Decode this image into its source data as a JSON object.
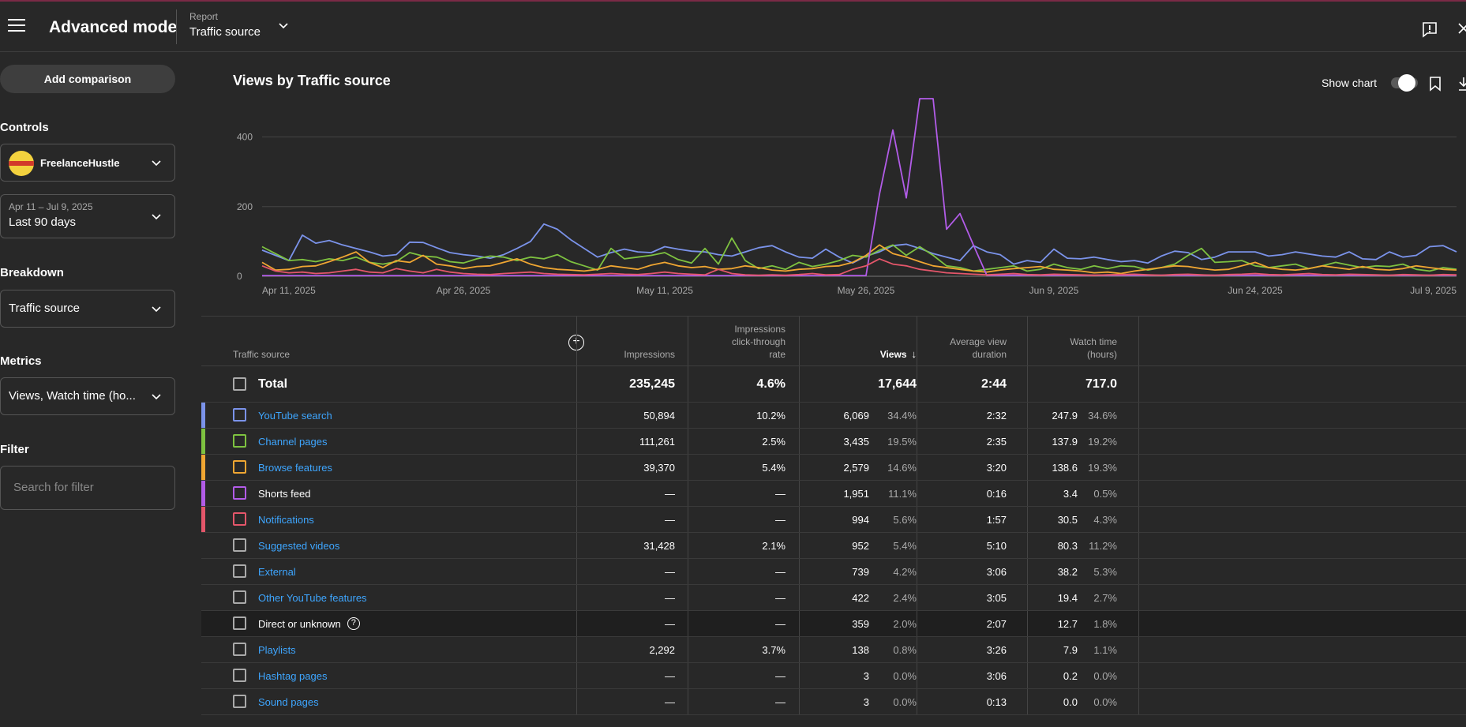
{
  "header": {
    "title": "Advanced mode",
    "report_label": "Report",
    "report_value": "Traffic source"
  },
  "sidebar": {
    "add_comparison": "Add comparison",
    "controls_heading": "Controls",
    "channel": "FreelanceHustle",
    "date_range_sub": "Apr 11 – Jul 9, 2025",
    "date_range": "Last 90 days",
    "breakdown_heading": "Breakdown",
    "breakdown": "Traffic source",
    "metrics_heading": "Metrics",
    "metrics": "Views, Watch time (ho...",
    "filter_heading": "Filter",
    "filter_placeholder": "Search for filter"
  },
  "chart": {
    "title": "Views by Traffic source",
    "show_chart_label": "Show chart",
    "show_chart_on": true
  },
  "chart_data": {
    "type": "line",
    "x": [
      "Apr 11, 2025",
      "Apr 12",
      "Apr 13",
      "Apr 14",
      "Apr 15",
      "Apr 16",
      "Apr 17",
      "Apr 18",
      "Apr 19",
      "Apr 20",
      "Apr 21",
      "Apr 22",
      "Apr 23",
      "Apr 24",
      "Apr 25",
      "Apr 26, 2025",
      "Apr 27",
      "Apr 28",
      "Apr 29",
      "Apr 30",
      "May 1",
      "May 2",
      "May 3",
      "May 4",
      "May 5",
      "May 6",
      "May 7",
      "May 8",
      "May 9",
      "May 10",
      "May 11, 2025",
      "May 12",
      "May 13",
      "May 14",
      "May 15",
      "May 16",
      "May 17",
      "May 18",
      "May 19",
      "May 20",
      "May 21",
      "May 22",
      "May 23",
      "May 24",
      "May 25",
      "May 26, 2025",
      "May 27",
      "May 28",
      "May 29",
      "May 30",
      "May 31",
      "Jun 1",
      "Jun 2",
      "Jun 3",
      "Jun 4",
      "Jun 5",
      "Jun 6",
      "Jun 7",
      "Jun 8",
      "Jun 9, 2025",
      "Jun 10",
      "Jun 11",
      "Jun 12",
      "Jun 13",
      "Jun 14",
      "Jun 15",
      "Jun 16",
      "Jun 17",
      "Jun 18",
      "Jun 19",
      "Jun 20",
      "Jun 21",
      "Jun 22",
      "Jun 23",
      "Jun 24, 2025",
      "Jun 25",
      "Jun 26",
      "Jun 27",
      "Jun 28",
      "Jun 29",
      "Jun 30",
      "Jul 1",
      "Jul 2",
      "Jul 3",
      "Jul 4",
      "Jul 5",
      "Jul 6",
      "Jul 7",
      "Jul 8",
      "Jul 9, 2025"
    ],
    "x_tick_labels": [
      "Apr 11, 2025",
      "Apr 26, 2025",
      "May 11, 2025",
      "May 26, 2025",
      "Jun 9, 2025",
      "Jun 24, 2025",
      "Jul 9, 2025"
    ],
    "x_tick_index": [
      0,
      15,
      30,
      45,
      59,
      74,
      89
    ],
    "y_ticks": [
      0,
      200,
      400
    ],
    "ylim": [
      0,
      510
    ],
    "grid": true,
    "series": [
      {
        "name": "YouTube search",
        "color": "#7b93ea",
        "values": [
          75,
          60,
          45,
          118,
          95,
          103,
          90,
          80,
          70,
          58,
          62,
          98,
          97,
          82,
          68,
          62,
          58,
          52,
          62,
          80,
          100,
          150,
          135,
          105,
          80,
          55,
          68,
          78,
          70,
          68,
          85,
          78,
          72,
          70,
          62,
          58,
          70,
          82,
          88,
          70,
          55,
          52,
          78,
          55,
          38,
          58,
          70,
          88,
          92,
          80,
          65,
          55,
          45,
          88,
          70,
          62,
          35,
          45,
          40,
          78,
          52,
          50,
          55,
          48,
          42,
          45,
          38,
          58,
          72,
          68,
          48,
          55,
          70,
          70,
          70,
          58,
          62,
          70,
          64,
          58,
          55,
          70,
          50,
          48,
          70,
          55,
          60,
          85,
          88,
          70
        ]
      },
      {
        "name": "Channel pages",
        "color": "#7ec240",
        "values": [
          85,
          65,
          45,
          48,
          42,
          50,
          45,
          55,
          40,
          35,
          42,
          68,
          58,
          55,
          42,
          38,
          50,
          58,
          55,
          45,
          55,
          50,
          62,
          42,
          30,
          18,
          80,
          50,
          55,
          60,
          68,
          48,
          38,
          80,
          35,
          110,
          45,
          22,
          30,
          20,
          40,
          28,
          35,
          45,
          60,
          55,
          75,
          90,
          60,
          85,
          60,
          30,
          25,
          15,
          20,
          25,
          30,
          15,
          20,
          35,
          25,
          20,
          30,
          22,
          30,
          28,
          18,
          25,
          35,
          60,
          80,
          40,
          42,
          45,
          30,
          25,
          30,
          35,
          22,
          30,
          40,
          32,
          25,
          30,
          28,
          35,
          20,
          15,
          25,
          20
        ]
      },
      {
        "name": "Browse features",
        "color": "#f0a632",
        "values": [
          40,
          18,
          20,
          28,
          30,
          42,
          55,
          70,
          40,
          25,
          45,
          40,
          60,
          35,
          30,
          22,
          28,
          30,
          40,
          50,
          35,
          25,
          20,
          18,
          15,
          20,
          30,
          25,
          20,
          32,
          40,
          30,
          25,
          28,
          20,
          22,
          30,
          25,
          18,
          15,
          20,
          22,
          28,
          30,
          40,
          60,
          90,
          65,
          55,
          42,
          30,
          25,
          20,
          15,
          12,
          18,
          22,
          25,
          28,
          20,
          18,
          15,
          10,
          12,
          8,
          15,
          20,
          25,
          30,
          28,
          22,
          18,
          20,
          30,
          40,
          25,
          20,
          18,
          22,
          30,
          25,
          20,
          28,
          20,
          18,
          22,
          30,
          25,
          20,
          18
        ]
      },
      {
        "name": "Shorts feed",
        "color": "#b25ce8",
        "values": [
          2,
          2,
          2,
          2,
          2,
          2,
          2,
          2,
          2,
          2,
          2,
          2,
          2,
          2,
          2,
          2,
          2,
          2,
          2,
          2,
          2,
          2,
          2,
          2,
          2,
          2,
          2,
          2,
          2,
          2,
          2,
          2,
          2,
          2,
          2,
          2,
          2,
          2,
          2,
          2,
          2,
          2,
          2,
          2,
          2,
          2,
          235,
          420,
          225,
          510,
          510,
          135,
          180,
          90,
          3,
          3,
          3,
          3,
          3,
          3,
          3,
          3,
          3,
          3,
          3,
          3,
          3,
          3,
          3,
          3,
          3,
          3,
          3,
          3,
          3,
          3,
          3,
          3,
          3,
          3,
          3,
          3,
          3,
          3,
          3,
          3,
          3,
          3,
          3,
          3
        ]
      },
      {
        "name": "Notifications",
        "color": "#e4566a",
        "values": [
          30,
          15,
          10,
          12,
          8,
          10,
          15,
          20,
          12,
          10,
          22,
          15,
          10,
          20,
          12,
          8,
          6,
          5,
          8,
          10,
          12,
          8,
          6,
          5,
          4,
          6,
          8,
          6,
          5,
          8,
          12,
          8,
          6,
          4,
          20,
          8,
          4,
          3,
          4,
          3,
          5,
          8,
          4,
          5,
          20,
          30,
          50,
          35,
          30,
          20,
          15,
          10,
          8,
          6,
          4,
          6,
          8,
          5,
          4,
          6,
          5,
          4,
          3,
          4,
          5,
          6,
          4,
          3,
          5,
          6,
          4,
          3,
          5,
          6,
          8,
          5,
          4,
          6,
          8,
          5,
          4,
          6,
          5,
          4,
          3,
          5,
          4,
          3,
          5,
          4
        ]
      }
    ]
  },
  "table": {
    "headers": {
      "source": "Traffic source",
      "impressions": "Impressions",
      "ctr_1": "Impressions",
      "ctr_2": "click-through",
      "ctr_3": "rate",
      "views": "Views",
      "avd_1": "Average view",
      "avd_2": "duration",
      "wt_1": "Watch time",
      "wt_2": "(hours)"
    },
    "total": {
      "label": "Total",
      "impressions": "235,245",
      "ctr": "4.6%",
      "views": "17,644",
      "avd": "2:44",
      "watch": "717.0"
    },
    "rows": [
      {
        "name": "YouTube search",
        "color": "#7b93ea",
        "impressions": "50,894",
        "ctr": "10.2%",
        "views": "6,069",
        "views_pct": "34.4%",
        "avd": "2:32",
        "watch": "247.9",
        "watch_pct": "34.6%"
      },
      {
        "name": "Channel pages",
        "color": "#7ec240",
        "impressions": "111,261",
        "ctr": "2.5%",
        "views": "3,435",
        "views_pct": "19.5%",
        "avd": "2:35",
        "watch": "137.9",
        "watch_pct": "19.2%"
      },
      {
        "name": "Browse features",
        "color": "#f0a632",
        "impressions": "39,370",
        "ctr": "5.4%",
        "views": "2,579",
        "views_pct": "14.6%",
        "avd": "3:20",
        "watch": "138.6",
        "watch_pct": "19.3%"
      },
      {
        "name": "Shorts feed",
        "color": "#b25ce8",
        "impressions": "—",
        "ctr": "—",
        "views": "1,951",
        "views_pct": "11.1%",
        "avd": "0:16",
        "watch": "3.4",
        "watch_pct": "0.5%"
      },
      {
        "name": "Notifications",
        "color": "#e4566a",
        "impressions": "—",
        "ctr": "—",
        "views": "994",
        "views_pct": "5.6%",
        "avd": "1:57",
        "watch": "30.5",
        "watch_pct": "4.3%"
      },
      {
        "name": "Suggested videos",
        "color": "",
        "impressions": "31,428",
        "ctr": "2.1%",
        "views": "952",
        "views_pct": "5.4%",
        "avd": "5:10",
        "watch": "80.3",
        "watch_pct": "11.2%"
      },
      {
        "name": "External",
        "color": "",
        "impressions": "—",
        "ctr": "—",
        "views": "739",
        "views_pct": "4.2%",
        "avd": "3:06",
        "watch": "38.2",
        "watch_pct": "5.3%"
      },
      {
        "name": "Other YouTube features",
        "color": "",
        "impressions": "—",
        "ctr": "—",
        "views": "422",
        "views_pct": "2.4%",
        "avd": "3:05",
        "watch": "19.4",
        "watch_pct": "2.7%"
      },
      {
        "name": "Direct or unknown",
        "color": "",
        "impressions": "—",
        "ctr": "—",
        "views": "359",
        "views_pct": "2.0%",
        "avd": "2:07",
        "watch": "12.7",
        "watch_pct": "1.8%"
      },
      {
        "name": "Playlists",
        "color": "",
        "impressions": "2,292",
        "ctr": "3.7%",
        "views": "138",
        "views_pct": "0.8%",
        "avd": "3:26",
        "watch": "7.9",
        "watch_pct": "1.1%"
      },
      {
        "name": "Hashtag pages",
        "color": "",
        "impressions": "—",
        "ctr": "—",
        "views": "3",
        "views_pct": "0.0%",
        "avd": "3:06",
        "watch": "0.2",
        "watch_pct": "0.0%"
      },
      {
        "name": "Sound pages",
        "color": "",
        "impressions": "—",
        "ctr": "—",
        "views": "3",
        "views_pct": "0.0%",
        "avd": "0:13",
        "watch": "0.0",
        "watch_pct": "0.0%"
      }
    ]
  }
}
